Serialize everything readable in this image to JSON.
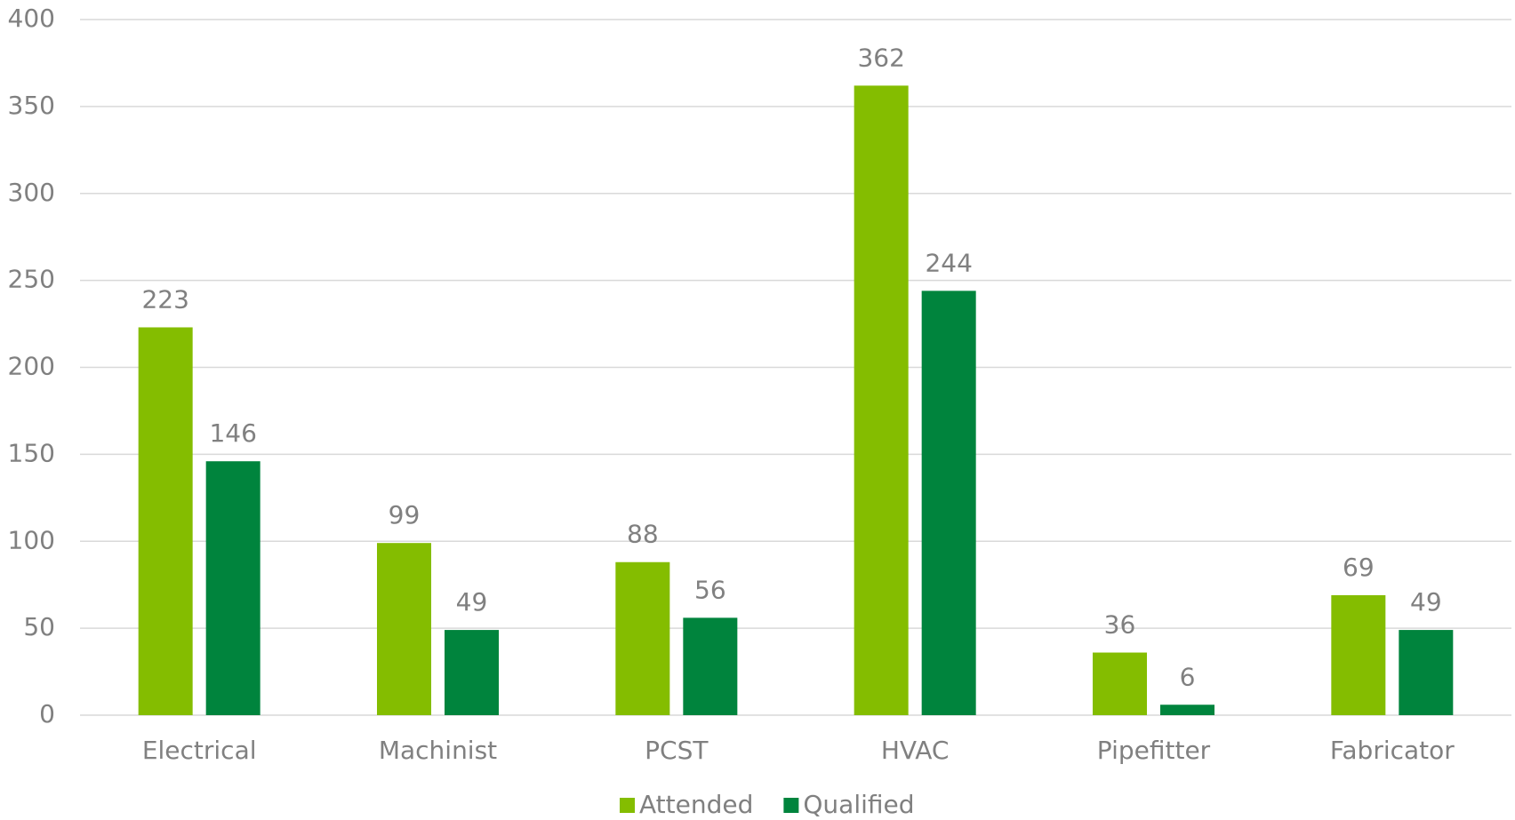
{
  "chart_data": {
    "type": "bar",
    "categories": [
      "Electrical",
      "Machinist",
      "PCST",
      "HVAC",
      "Pipefitter",
      "Fabricator"
    ],
    "series": [
      {
        "name": "Attended",
        "color": "#84bd00",
        "values": [
          223,
          99,
          88,
          362,
          36,
          69
        ]
      },
      {
        "name": "Qualified",
        "color": "#00843d",
        "values": [
          146,
          49,
          56,
          244,
          6,
          49
        ]
      }
    ],
    "ylim": [
      0,
      400
    ],
    "yticks": [
      0,
      50,
      100,
      150,
      200,
      250,
      300,
      350,
      400
    ],
    "grid": true,
    "legend": "bottom"
  }
}
